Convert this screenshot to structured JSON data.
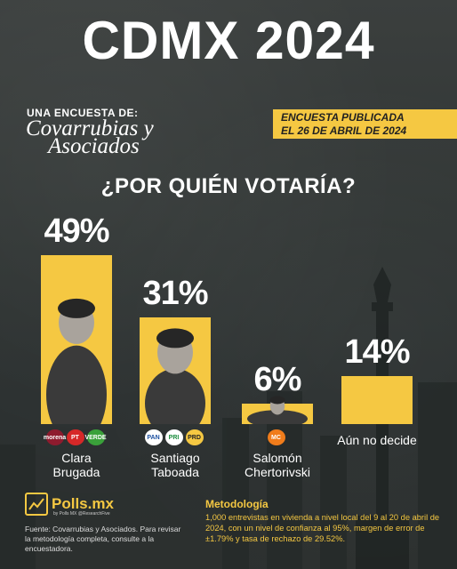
{
  "header": {
    "title": "CDMX 2024",
    "pollster_prefix": "UNA ENCUESTA DE:",
    "pollster_line1": "Covarrubias y",
    "pollster_line2": "Asociados",
    "published_line1": "ENCUESTA PUBLICADA",
    "published_line2": "EL 26 DE ABRIL DE 2024"
  },
  "question": "¿POR QUIÉN VOTARÍA?",
  "colors": {
    "accent": "#f5c842",
    "background": "#2f3433"
  },
  "chart_data": {
    "type": "bar",
    "categories": [
      "Clara Brugada",
      "Santiago Taboada",
      "Salomón Chertorivski",
      "Aún no decide"
    ],
    "values": [
      49,
      31,
      6,
      14
    ],
    "value_labels": [
      "49%",
      "31%",
      "6%",
      "14%"
    ],
    "ylim": [
      0,
      49
    ]
  },
  "candidates": [
    {
      "name_line1": "Clara",
      "name_line2": "Brugada",
      "parties": [
        "morena",
        "PT",
        "PVEM"
      ]
    },
    {
      "name_line1": "Santiago",
      "name_line2": "Taboada",
      "parties": [
        "PAN",
        "PRI",
        "PRD"
      ]
    },
    {
      "name_line1": "Salomón",
      "name_line2": "Chertorivski",
      "parties": [
        "MC"
      ]
    },
    {
      "name_line1": "Aún no decide",
      "name_line2": "",
      "parties": []
    }
  ],
  "party_labels": {
    "morena": "morena",
    "PT": "PT",
    "PVEM": "VERDE",
    "PAN": "PAN",
    "PRI": "PRI",
    "PRD": "PRD",
    "MC": "MC"
  },
  "footer": {
    "brand": "Polls.mx",
    "brand_sub": "by Polls MX  @ResearchFive",
    "source": "Fuente: Covarrubias y Asociados. Para revisar la metodología completa, consulte a la encuestadora.",
    "method_title": "Metodología",
    "method_text": "1,000 entrevistas en vivienda a nivel local del 9 al 20 de abril de 2024, con un nivel de confianza al 95%, margen de error de ±1.79% y tasa de rechazo de 29.52%."
  }
}
